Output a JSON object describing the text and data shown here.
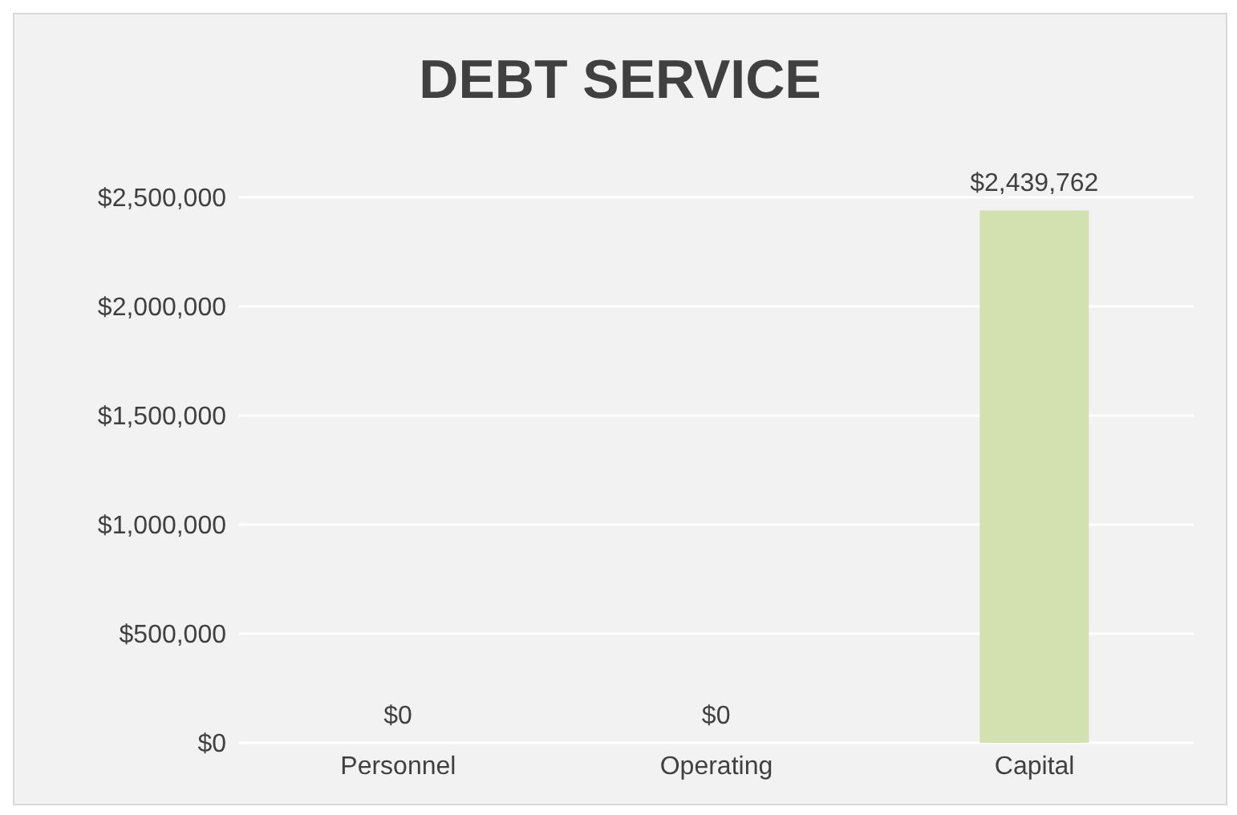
{
  "chart_data": {
    "type": "bar",
    "title": "DEBT SERVICE",
    "categories": [
      "Personnel",
      "Operating",
      "Capital"
    ],
    "values": [
      0,
      0,
      2439762
    ],
    "value_labels": [
      "$0",
      "$0",
      "$2,439,762"
    ],
    "color": "#d3e0b0",
    "ylim": [
      0,
      2500000
    ],
    "yticks": [
      {
        "value": 0,
        "label": "$0"
      },
      {
        "value": 500000,
        "label": "$500,000"
      },
      {
        "value": 1000000,
        "label": "$1,000,000"
      },
      {
        "value": 1500000,
        "label": "$1,500,000"
      },
      {
        "value": 2000000,
        "label": "$2,000,000"
      },
      {
        "value": 2500000,
        "label": "$2,500,000"
      }
    ],
    "grid": "y",
    "legend": false
  }
}
